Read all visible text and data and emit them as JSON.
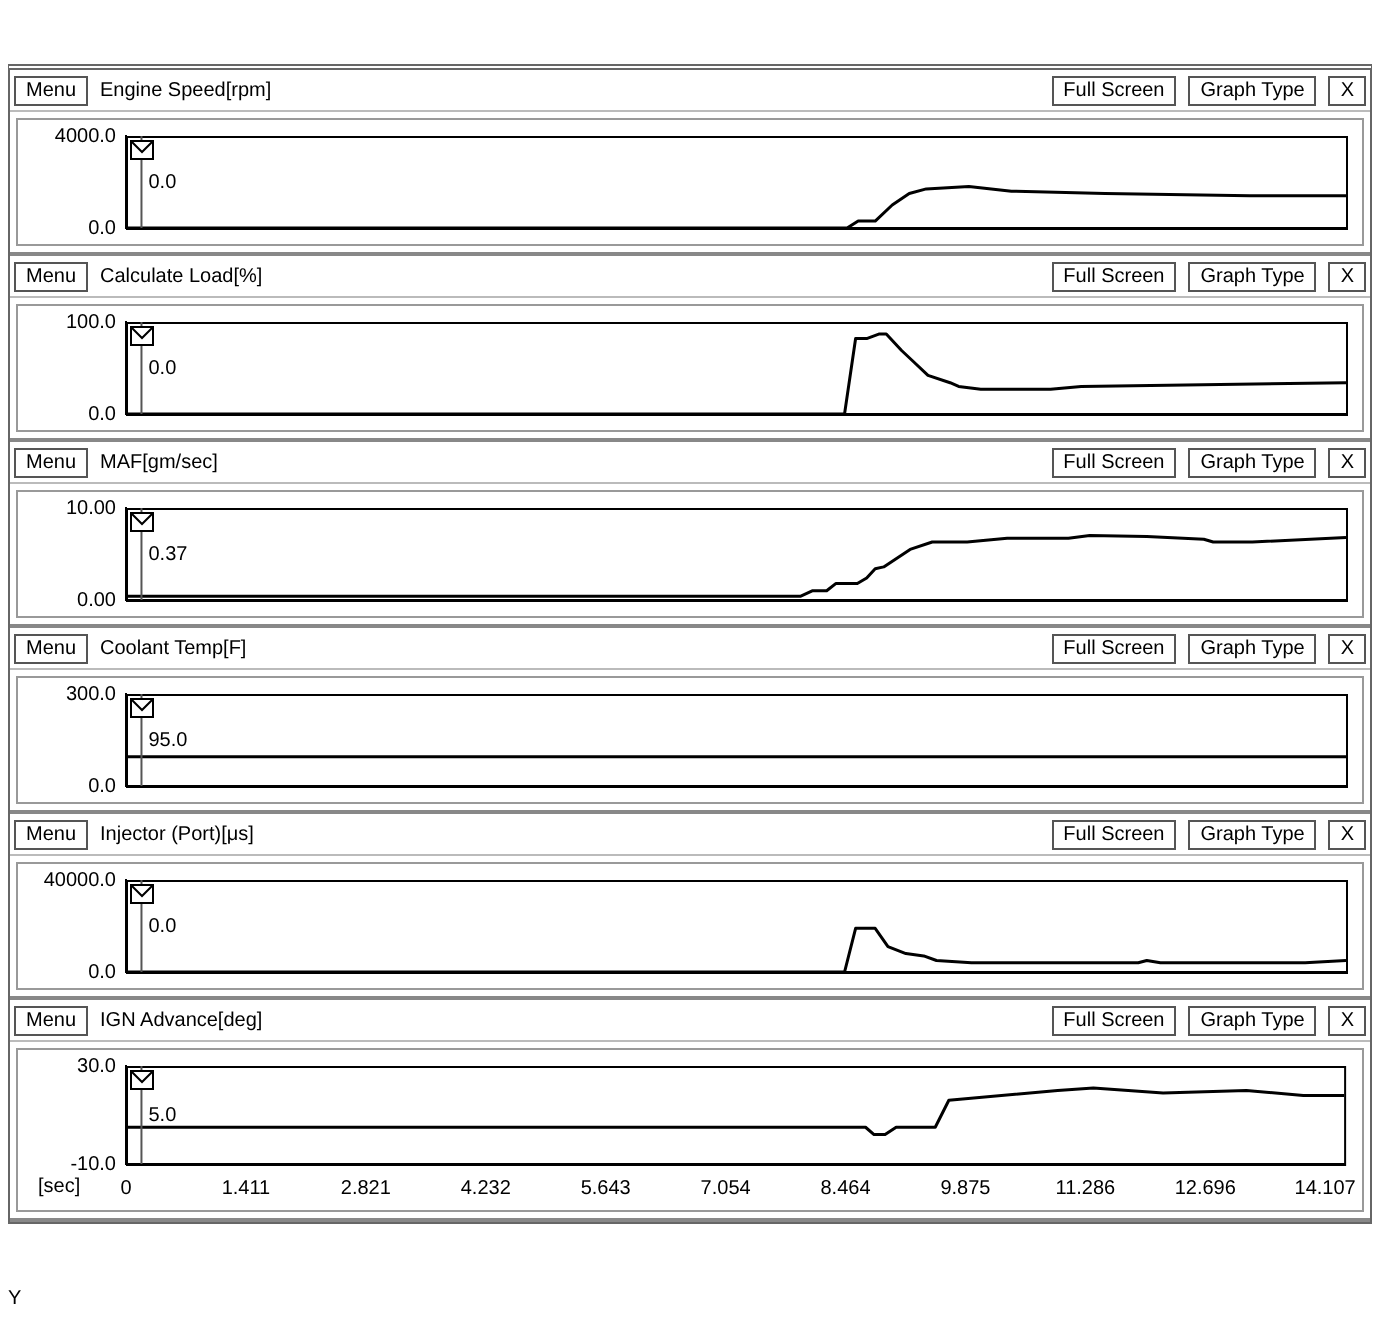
{
  "chart_data": [
    {
      "type": "line",
      "title": "Engine Speed[rpm]",
      "xlim": [
        0,
        14.33
      ],
      "xticks": [
        0,
        1.411,
        2.821,
        4.232,
        5.643,
        7.054,
        8.464,
        9.875,
        11.286,
        12.696,
        14.107
      ],
      "ylim": [
        0,
        4000
      ],
      "yticks": [
        {
          "value": 0,
          "label": "0.0"
        },
        {
          "value": 4000,
          "label": "4000.0"
        }
      ],
      "tick_labels": "y",
      "annotations": [
        "Menu",
        "Full Screen",
        "Graph Type",
        "X",
        "0.0"
      ],
      "ref_lines": [
        {
          "axis": "x",
          "value": 0.17,
          "color": "#555555"
        }
      ],
      "series": [
        {
          "color": "#000000",
          "x": [
            0,
            8.47,
            8.6,
            8.8,
            9.0,
            9.2,
            9.4,
            9.9,
            10.4,
            11.5,
            13.2,
            14.33
          ],
          "values": [
            0,
            0,
            300,
            300,
            1000,
            1500,
            1700,
            1800,
            1600,
            1500,
            1400,
            1400
          ]
        }
      ]
    },
    {
      "type": "line",
      "title": "Calculate Load[%]",
      "xlim": [
        0,
        14.33
      ],
      "xticks": [
        0,
        1.411,
        2.821,
        4.232,
        5.643,
        7.054,
        8.464,
        9.875,
        11.286,
        12.696,
        14.107
      ],
      "ylim": [
        0,
        100
      ],
      "yticks": [
        {
          "value": 0,
          "label": "0.0"
        },
        {
          "value": 100,
          "label": "100.0"
        }
      ],
      "tick_labels": "y",
      "annotations": [
        "Menu",
        "Full Screen",
        "Graph Type",
        "X",
        "0.0"
      ],
      "ref_lines": [
        {
          "axis": "x",
          "value": 0.17,
          "color": "#555555"
        }
      ],
      "series": [
        {
          "color": "#000000",
          "x": [
            0,
            8.44,
            8.57,
            8.7,
            8.85,
            8.93,
            9.11,
            9.26,
            9.42,
            9.68,
            9.78,
            10.04,
            10.86,
            11.22,
            14.33
          ],
          "values": [
            0,
            0,
            82,
            82,
            87,
            87,
            69,
            56,
            42,
            34,
            30,
            27,
            27,
            30,
            34
          ]
        }
      ]
    },
    {
      "type": "line",
      "title": "MAF[gm/sec]",
      "xlim": [
        0,
        14.33
      ],
      "xticks": [
        0,
        1.411,
        2.821,
        4.232,
        5.643,
        7.054,
        8.464,
        9.875,
        11.286,
        12.696,
        14.107
      ],
      "ylim": [
        0,
        10
      ],
      "yticks": [
        {
          "value": 0,
          "label": "0.00"
        },
        {
          "value": 10,
          "label": "10.00"
        }
      ],
      "tick_labels": "y",
      "annotations": [
        "Menu",
        "Full Screen",
        "Graph Type",
        "X",
        "0.37"
      ],
      "ref_lines": [
        {
          "axis": "x",
          "value": 0.17,
          "color": "#555555"
        }
      ],
      "series": [
        {
          "color": "#000000",
          "x": [
            0,
            7.92,
            8.06,
            8.23,
            8.34,
            8.59,
            8.7,
            8.8,
            8.9,
            9.21,
            9.47,
            9.88,
            10.35,
            11.07,
            11.32,
            11.99,
            12.66,
            12.77,
            13.23,
            14.33
          ],
          "values": [
            0.4,
            0.4,
            1.0,
            1.0,
            1.8,
            1.8,
            2.4,
            3.4,
            3.6,
            5.5,
            6.3,
            6.3,
            6.7,
            6.7,
            7.0,
            6.9,
            6.6,
            6.3,
            6.3,
            6.8
          ]
        }
      ]
    },
    {
      "type": "line",
      "title": "Coolant Temp[F]",
      "xlim": [
        0,
        14.33
      ],
      "xticks": [
        0,
        1.411,
        2.821,
        4.232,
        5.643,
        7.054,
        8.464,
        9.875,
        11.286,
        12.696,
        14.107
      ],
      "ylim": [
        0,
        300
      ],
      "yticks": [
        {
          "value": 0,
          "label": "0.0"
        },
        {
          "value": 300,
          "label": "300.0"
        }
      ],
      "tick_labels": "y",
      "annotations": [
        "Menu",
        "Full Screen",
        "Graph Type",
        "X",
        "95.0"
      ],
      "ref_lines": [
        {
          "axis": "x",
          "value": 0.17,
          "color": "#555555"
        }
      ],
      "series": [
        {
          "color": "#000000",
          "x": [
            0,
            14.33
          ],
          "values": [
            95,
            95
          ]
        }
      ]
    },
    {
      "type": "line",
      "title": "Injector (Port)[μs]",
      "xlim": [
        0,
        14.33
      ],
      "xticks": [
        0,
        1.411,
        2.821,
        4.232,
        5.643,
        7.054,
        8.464,
        9.875,
        11.286,
        12.696,
        14.107
      ],
      "ylim": [
        0,
        40000
      ],
      "yticks": [
        {
          "value": 0,
          "label": "0.0"
        },
        {
          "value": 40000,
          "label": "40000.0"
        }
      ],
      "tick_labels": "y",
      "annotations": [
        "Menu",
        "Full Screen",
        "Graph Type",
        "X",
        "0.0"
      ],
      "ref_lines": [
        {
          "axis": "x",
          "value": 0.17,
          "color": "#555555"
        }
      ],
      "series": [
        {
          "color": "#000000",
          "x": [
            0,
            8.44,
            8.57,
            8.8,
            8.95,
            9.16,
            9.37,
            9.52,
            9.93,
            11.89,
            11.99,
            12.15,
            13.85,
            14.33
          ],
          "values": [
            0,
            0,
            19000,
            19000,
            11000,
            8000,
            7000,
            5000,
            4000,
            4000,
            5000,
            4000,
            4000,
            5000
          ]
        }
      ]
    },
    {
      "type": "line",
      "title": "IGN Advance[deg]",
      "xlabel": "[sec]",
      "xlim": [
        0,
        14.33
      ],
      "xticks": [
        0,
        1.411,
        2.821,
        4.232,
        5.643,
        7.054,
        8.464,
        9.875,
        11.286,
        12.696,
        14.107
      ],
      "ylim": [
        -10,
        30
      ],
      "yticks": [
        {
          "value": -10,
          "label": "-10.0"
        },
        {
          "value": 30,
          "label": "30.0"
        }
      ],
      "annotations": [
        "Menu",
        "Full Screen",
        "Graph Type",
        "X",
        "5.0",
        "Y"
      ],
      "ref_lines": [
        {
          "axis": "x",
          "value": 0.17,
          "color": "#555555"
        }
      ],
      "series": [
        {
          "color": "#000000",
          "x": [
            0,
            8.7,
            8.8,
            8.93,
            9.06,
            9.52,
            9.68,
            10.96,
            11.38,
            12.2,
            13.18,
            13.85,
            14.33
          ],
          "values": [
            5,
            5,
            2,
            2,
            5,
            5,
            16,
            20,
            21,
            19,
            20,
            18,
            18
          ]
        }
      ]
    }
  ]
}
